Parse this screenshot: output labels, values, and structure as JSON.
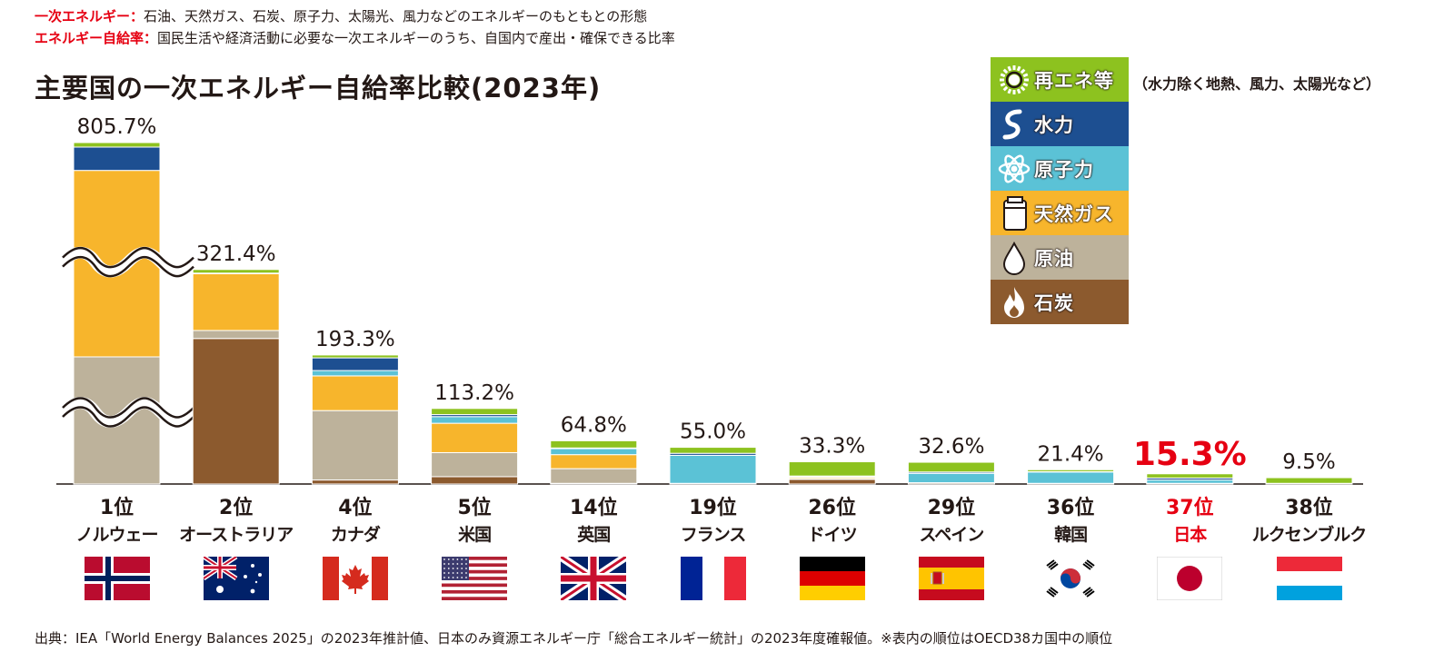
{
  "definitions": [
    {
      "term": "一次エネルギー：",
      "desc": "石油、天然ガス、石炭、原子力、太陽光、風力などのエネルギーのもともとの形態"
    },
    {
      "term": "エネルギー自給率：",
      "desc": "国民生活や経済活動に必要な一次エネルギーのうち、自国内で産出・確保できる比率"
    }
  ],
  "legend_note": "（水力除く地熱、風力、太陽光など）",
  "source": "出典：IEA「World Energy Balances 2025」の2023年推計値、日本のみ資源エネルギー庁「総合エネルギー統計」の2023年度確報値。※表内の順位はOECD38カ国中の順位",
  "colors": {
    "renewables": "#8dc21f",
    "hydro": "#1d4f91",
    "nuclear": "#5bc2d6",
    "gas": "#f7b52c",
    "oil": "#bdb29b",
    "coal": "#8c5a2e",
    "highlight": "#e60012"
  },
  "chart_data": {
    "type": "bar",
    "stacked": true,
    "title": "主要国の一次エネルギー自給率比較(2023年)",
    "legend_position": "top-right",
    "legend": [
      {
        "key": "renewables",
        "label": "再エネ等",
        "icon": "sun-icon"
      },
      {
        "key": "hydro",
        "label": "水力",
        "icon": "water-wave-icon"
      },
      {
        "key": "nuclear",
        "label": "原子力",
        "icon": "atom-icon"
      },
      {
        "key": "gas",
        "label": "天然ガス",
        "icon": "gas-tank-icon"
      },
      {
        "key": "oil",
        "label": "原油",
        "icon": "oil-drop-icon"
      },
      {
        "key": "coal",
        "label": "石炭",
        "icon": "flame-icon"
      }
    ],
    "axis_break": {
      "category": "ノルウェー"
    },
    "bars": [
      {
        "rank": "1位",
        "country": "ノルウェー",
        "flag": "norway",
        "total": 805.7,
        "label": "805.7%",
        "segments": {
          "coal": 0,
          "oil": 300,
          "gas": 440,
          "nuclear": 0,
          "hydro": 55,
          "renewables": 10.7
        }
      },
      {
        "rank": "2位",
        "country": "オーストラリア",
        "flag": "australia",
        "total": 321.4,
        "label": "321.4%",
        "segments": {
          "coal": 218,
          "oil": 12,
          "gas": 85,
          "nuclear": 0,
          "hydro": 1,
          "renewables": 5.4
        }
      },
      {
        "rank": "4位",
        "country": "カナダ",
        "flag": "canada",
        "total": 193.3,
        "label": "193.3%",
        "segments": {
          "coal": 6,
          "oil": 104,
          "gas": 52,
          "nuclear": 8,
          "hydro": 19,
          "renewables": 4.3
        }
      },
      {
        "rank": "5位",
        "country": "米国",
        "flag": "usa",
        "total": 113.2,
        "label": "113.2%",
        "segments": {
          "coal": 11,
          "oil": 36,
          "gas": 44,
          "nuclear": 10,
          "hydro": 3,
          "renewables": 9.2
        }
      },
      {
        "rank": "14位",
        "country": "英国",
        "flag": "uk",
        "total": 64.8,
        "label": "64.8%",
        "segments": {
          "coal": 1,
          "oil": 22,
          "gas": 21,
          "nuclear": 9,
          "hydro": 1,
          "renewables": 10.8
        }
      },
      {
        "rank": "19位",
        "country": "フランス",
        "flag": "france",
        "total": 55.0,
        "label": "55.0%",
        "segments": {
          "coal": 0,
          "oil": 1,
          "gas": 0,
          "nuclear": 42,
          "hydro": 3,
          "renewables": 9.0
        }
      },
      {
        "rank": "26位",
        "country": "ドイツ",
        "flag": "germany",
        "total": 33.3,
        "label": "33.3%",
        "segments": {
          "coal": 7,
          "oil": 1,
          "gas": 2,
          "nuclear": 1,
          "hydro": 1,
          "renewables": 21.3
        }
      },
      {
        "rank": "29位",
        "country": "スペイン",
        "flag": "spain",
        "total": 32.6,
        "label": "32.6%",
        "segments": {
          "coal": 0,
          "oil": 2,
          "gas": 0,
          "nuclear": 14,
          "hydro": 2,
          "renewables": 14.6
        }
      },
      {
        "rank": "36位",
        "country": "韓国",
        "flag": "korea",
        "total": 21.4,
        "label": "21.4%",
        "segments": {
          "coal": 0,
          "oil": 1,
          "gas": 0,
          "nuclear": 17,
          "hydro": 0.5,
          "renewables": 2.9
        }
      },
      {
        "rank": "37位",
        "country": "日本",
        "flag": "japan",
        "total": 15.3,
        "label": "15.3%",
        "highlight": true,
        "segments": {
          "coal": 0,
          "oil": 1,
          "gas": 0,
          "nuclear": 5,
          "hydro": 3,
          "renewables": 6.3
        }
      },
      {
        "rank": "38位",
        "country": "ルクセンブルク",
        "flag": "luxembourg",
        "total": 9.5,
        "label": "9.5%",
        "segments": {
          "coal": 0,
          "oil": 0,
          "gas": 0,
          "nuclear": 0,
          "hydro": 1,
          "renewables": 8.5
        }
      }
    ]
  }
}
